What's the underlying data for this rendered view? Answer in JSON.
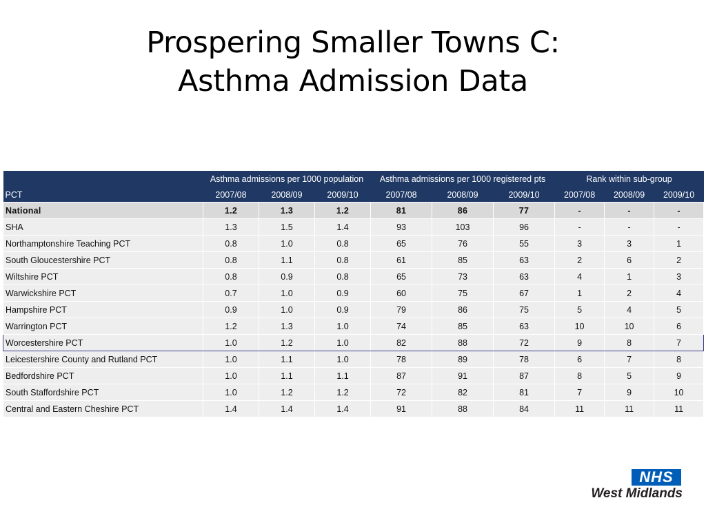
{
  "title": {
    "line1": "Prospering Smaller Towns C:",
    "line2": "Asthma Admission Data"
  },
  "table": {
    "pct_label": "PCT",
    "groups": [
      "Asthma admissions per 1000 population",
      "Asthma admissions per 1000 registered pts",
      "Rank within sub-group"
    ],
    "years": [
      "2007/08",
      "2008/09",
      "2009/10",
      "2007/08",
      "2008/09",
      "2009/10",
      "2007/08",
      "2008/09",
      "2009/10"
    ],
    "highlighted_row": "Worcestershire PCT",
    "rows": [
      {
        "name": "National",
        "values": [
          "1.2",
          "1.3",
          "1.2",
          "81",
          "86",
          "77",
          "-",
          "-",
          "-"
        ]
      },
      {
        "name": "SHA",
        "values": [
          "1.3",
          "1.5",
          "1.4",
          "93",
          "103",
          "96",
          "-",
          "-",
          "-"
        ]
      },
      {
        "name": "Northamptonshire Teaching PCT",
        "values": [
          "0.8",
          "1.0",
          "0.8",
          "65",
          "76",
          "55",
          "3",
          "3",
          "1"
        ]
      },
      {
        "name": "South Gloucestershire PCT",
        "values": [
          "0.8",
          "1.1",
          "0.8",
          "61",
          "85",
          "63",
          "2",
          "6",
          "2"
        ]
      },
      {
        "name": "Wiltshire PCT",
        "values": [
          "0.8",
          "0.9",
          "0.8",
          "65",
          "73",
          "63",
          "4",
          "1",
          "3"
        ]
      },
      {
        "name": "Warwickshire PCT",
        "values": [
          "0.7",
          "1.0",
          "0.9",
          "60",
          "75",
          "67",
          "1",
          "2",
          "4"
        ]
      },
      {
        "name": "Hampshire PCT",
        "values": [
          "0.9",
          "1.0",
          "0.9",
          "79",
          "86",
          "75",
          "5",
          "4",
          "5"
        ]
      },
      {
        "name": "Warrington PCT",
        "values": [
          "1.2",
          "1.3",
          "1.0",
          "74",
          "85",
          "63",
          "10",
          "10",
          "6"
        ]
      },
      {
        "name": "Worcestershire PCT",
        "values": [
          "1.0",
          "1.2",
          "1.0",
          "82",
          "88",
          "72",
          "9",
          "8",
          "7"
        ]
      },
      {
        "name": "Leicestershire County and Rutland PCT",
        "values": [
          "1.0",
          "1.1",
          "1.0",
          "78",
          "89",
          "78",
          "6",
          "7",
          "8"
        ]
      },
      {
        "name": "Bedfordshire PCT",
        "values": [
          "1.0",
          "1.1",
          "1.1",
          "87",
          "91",
          "87",
          "8",
          "5",
          "9"
        ]
      },
      {
        "name": "South Staffordshire PCT",
        "values": [
          "1.0",
          "1.2",
          "1.2",
          "72",
          "82",
          "81",
          "7",
          "9",
          "10"
        ]
      },
      {
        "name": "Central and Eastern Cheshire PCT",
        "values": [
          "1.4",
          "1.4",
          "1.4",
          "91",
          "88",
          "84",
          "11",
          "11",
          "11"
        ]
      }
    ]
  },
  "logo": {
    "nhs": "NHS",
    "region": "West Midlands",
    "color": "#005eb8"
  },
  "colors": {
    "header_bg": "#1f3864",
    "row_bg": "#eeeeee",
    "national_bg": "#d9d9d9",
    "highlight_border": "#3b3b8f"
  }
}
